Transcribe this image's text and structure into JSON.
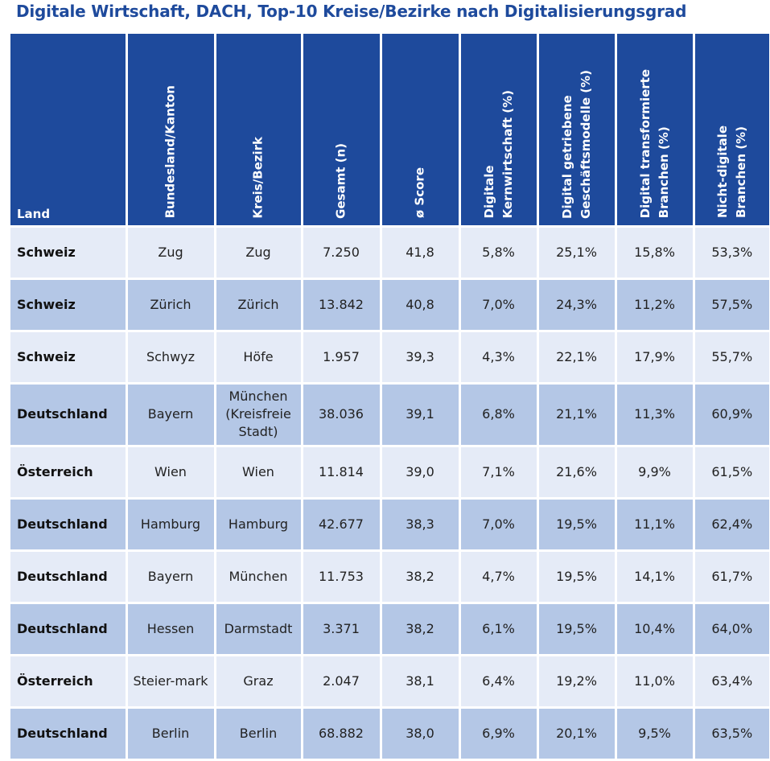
{
  "title": "Digitale Wirtschaft, DACH, Top-10 Kreise/Bezirke nach Digitalisierungsgrad",
  "colors": {
    "header": "#1e4a9c",
    "row_light": "#e5ebf7",
    "row_dark": "#b4c7e6",
    "title": "#1e4a9c"
  },
  "columns": [
    {
      "line1": "Land",
      "line2": ""
    },
    {
      "line1": "Bundesland/Kanton",
      "line2": ""
    },
    {
      "line1": "Kreis/Bezirk",
      "line2": ""
    },
    {
      "line1": "Gesamt (n)",
      "line2": ""
    },
    {
      "line1": "ø Score",
      "line2": ""
    },
    {
      "line1": "Digitale",
      "line2": "Kernwirtschaft (%)"
    },
    {
      "line1": "Digital getriebene",
      "line2": "Geschäftsmodelle (%)"
    },
    {
      "line1": "Digital transformierte",
      "line2": "Branchen (%)"
    },
    {
      "line1": "Nicht-digitale",
      "line2": "Branchen (%)"
    }
  ],
  "rows": [
    {
      "land": "Schweiz",
      "bundesland": "Zug",
      "kreis": "Zug",
      "gesamt": "7.250",
      "score": "41,8",
      "kern": "5,8%",
      "getrieben": "25,1%",
      "transformiert": "15,8%",
      "nicht_digital": "53,3%"
    },
    {
      "land": "Schweiz",
      "bundesland": "Zürich",
      "kreis": "Zürich",
      "gesamt": "13.842",
      "score": "40,8",
      "kern": "7,0%",
      "getrieben": "24,3%",
      "transformiert": "11,2%",
      "nicht_digital": "57,5%"
    },
    {
      "land": "Schweiz",
      "bundesland": "Schwyz",
      "kreis": "Höfe",
      "gesamt": "1.957",
      "score": "39,3",
      "kern": "4,3%",
      "getrieben": "22,1%",
      "transformiert": "17,9%",
      "nicht_digital": "55,7%"
    },
    {
      "land": "Deutschland",
      "bundesland": "Bayern",
      "kreis": "München (Kreisfreie Stadt)",
      "gesamt": "38.036",
      "score": "39,1",
      "kern": "6,8%",
      "getrieben": "21,1%",
      "transformiert": "11,3%",
      "nicht_digital": "60,9%"
    },
    {
      "land": "Österreich",
      "bundesland": "Wien",
      "kreis": "Wien",
      "gesamt": "11.814",
      "score": "39,0",
      "kern": "7,1%",
      "getrieben": "21,6%",
      "transformiert": "9,9%",
      "nicht_digital": "61,5%"
    },
    {
      "land": "Deutschland",
      "bundesland": "Hamburg",
      "kreis": "Hamburg",
      "gesamt": "42.677",
      "score": "38,3",
      "kern": "7,0%",
      "getrieben": "19,5%",
      "transformiert": "11,1%",
      "nicht_digital": "62,4%"
    },
    {
      "land": "Deutschland",
      "bundesland": "Bayern",
      "kreis": "München",
      "gesamt": "11.753",
      "score": "38,2",
      "kern": "4,7%",
      "getrieben": "19,5%",
      "transformiert": "14,1%",
      "nicht_digital": "61,7%"
    },
    {
      "land": "Deutschland",
      "bundesland": "Hessen",
      "kreis": "Darmstadt",
      "gesamt": "3.371",
      "score": "38,2",
      "kern": "6,1%",
      "getrieben": "19,5%",
      "transformiert": "10,4%",
      "nicht_digital": "64,0%"
    },
    {
      "land": "Österreich",
      "bundesland": "Steier-mark",
      "kreis": "Graz",
      "gesamt": "2.047",
      "score": "38,1",
      "kern": "6,4%",
      "getrieben": "19,2%",
      "transformiert": "11,0%",
      "nicht_digital": "63,4%"
    },
    {
      "land": "Deutschland",
      "bundesland": "Berlin",
      "kreis": "Berlin",
      "gesamt": "68.882",
      "score": "38,0",
      "kern": "6,9%",
      "getrieben": "20,1%",
      "transformiert": "9,5%",
      "nicht_digital": "63,5%"
    }
  ]
}
